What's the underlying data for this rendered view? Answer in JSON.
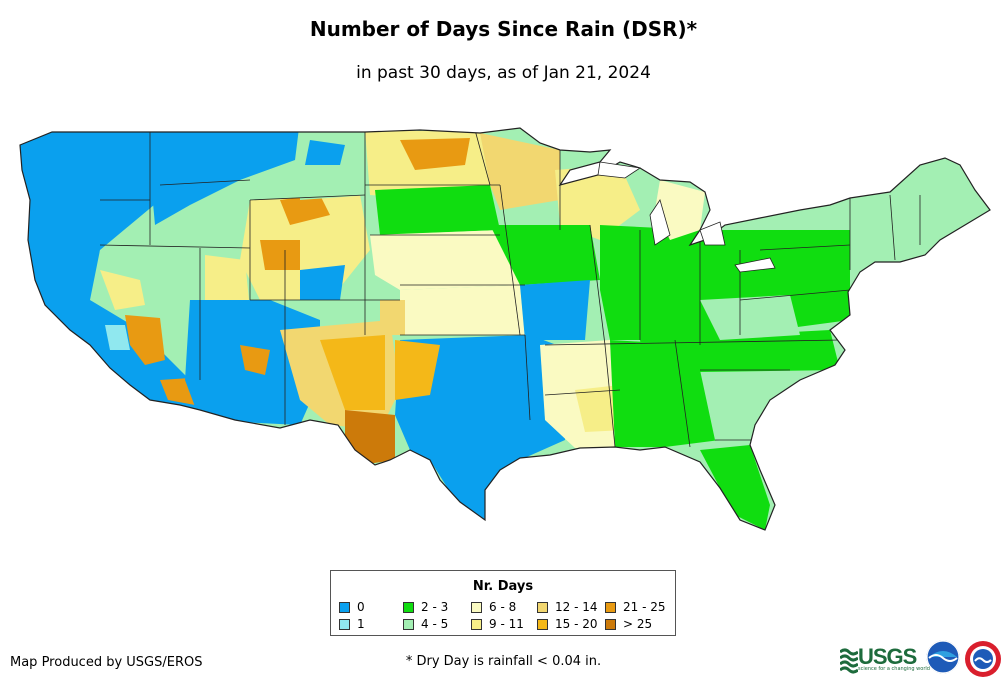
{
  "title": "Number of Days Since Rain (DSR)*",
  "subtitle": "in past 30 days, as of Jan 21, 2024",
  "legend": {
    "title": "Nr. Days",
    "items": [
      {
        "label": "0",
        "color": "#0aa0ee"
      },
      {
        "label": "1",
        "color": "#90e8ef"
      },
      {
        "label": "2 - 3",
        "color": "#10dd10"
      },
      {
        "label": "4 - 5",
        "color": "#a3efb3"
      },
      {
        "label": "6 - 8",
        "color": "#fafac2"
      },
      {
        "label": "9 - 11",
        "color": "#f6ee88"
      },
      {
        "label": "12 - 14",
        "color": "#f2d770"
      },
      {
        "label": "15 - 20",
        "color": "#f4b818"
      },
      {
        "label": "21 - 25",
        "color": "#e89a12"
      },
      {
        "label": "> 25",
        "color": "#cc7a0a"
      }
    ]
  },
  "credit": "Map Produced by USGS/EROS",
  "footnote": "* Dry Day is rainfall < 0.04 in.",
  "logos": {
    "usgs": "USGS",
    "usgs_tagline": "science for a changing world",
    "noaa": "noaa-logo",
    "nws": "nws-logo"
  }
}
